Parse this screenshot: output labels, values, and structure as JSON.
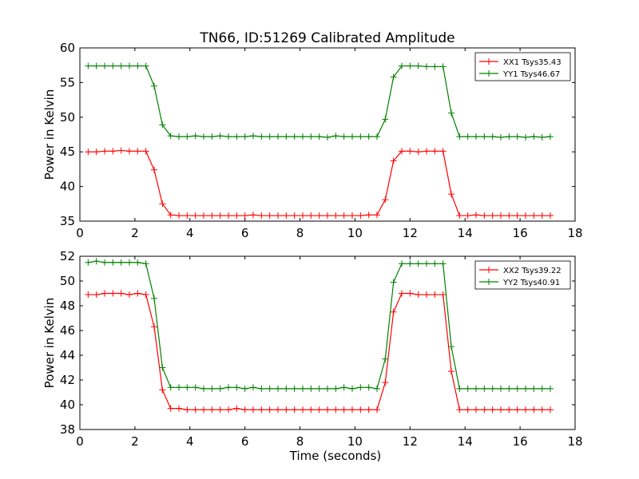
{
  "figure_title": "TN66, ID:51269 Calibrated Amplitude",
  "x_tick_labels": [
    "0",
    "2",
    "4",
    "6",
    "8",
    "10",
    "12",
    "14",
    "16",
    "18"
  ],
  "chart_data": [
    {
      "type": "line",
      "title": "TN66, ID:51269 Calibrated Amplitude",
      "xlabel": "",
      "ylabel": "Power in Kelvin",
      "xlim": [
        0,
        18
      ],
      "ylim": [
        35,
        60
      ],
      "yticks": [
        35,
        40,
        45,
        50,
        55,
        60
      ],
      "y_tick_labels": [
        "35",
        "40",
        "45",
        "50",
        "55",
        "60"
      ],
      "grid": false,
      "legend_position": "top-right",
      "x": [
        0.3,
        0.6,
        0.9,
        1.2,
        1.5,
        1.8,
        2.1,
        2.4,
        2.7,
        3.0,
        3.3,
        3.6,
        3.9,
        4.2,
        4.5,
        4.8,
        5.1,
        5.4,
        5.7,
        6.0,
        6.3,
        6.6,
        6.9,
        7.2,
        7.5,
        7.8,
        8.1,
        8.4,
        8.7,
        9.0,
        9.3,
        9.6,
        9.9,
        10.2,
        10.5,
        10.8,
        11.1,
        11.4,
        11.7,
        12.0,
        12.3,
        12.6,
        12.9,
        13.2,
        13.5,
        13.8,
        14.1,
        14.4,
        14.7,
        15.0,
        15.3,
        15.6,
        15.9,
        16.2,
        16.5,
        16.8,
        17.1
      ],
      "series": [
        {
          "name": "XX1 Tsys35.43",
          "color": "#ff0000",
          "values": [
            45.0,
            45.0,
            45.1,
            45.1,
            45.2,
            45.1,
            45.1,
            45.1,
            42.4,
            37.5,
            35.9,
            35.8,
            35.8,
            35.8,
            35.8,
            35.8,
            35.8,
            35.8,
            35.8,
            35.8,
            35.9,
            35.8,
            35.8,
            35.8,
            35.8,
            35.8,
            35.8,
            35.8,
            35.8,
            35.8,
            35.8,
            35.8,
            35.8,
            35.8,
            35.9,
            35.9,
            38.1,
            43.7,
            45.1,
            45.1,
            45.0,
            45.1,
            45.1,
            45.1,
            38.9,
            35.8,
            35.8,
            35.9,
            35.8,
            35.8,
            35.8,
            35.8,
            35.8,
            35.8,
            35.8,
            35.8,
            35.8
          ]
        },
        {
          "name": "YY1 Tsys46.67",
          "color": "#008000",
          "values": [
            57.4,
            57.4,
            57.4,
            57.4,
            57.4,
            57.4,
            57.4,
            57.4,
            54.5,
            48.9,
            47.3,
            47.2,
            47.2,
            47.3,
            47.2,
            47.2,
            47.3,
            47.2,
            47.2,
            47.2,
            47.3,
            47.2,
            47.2,
            47.2,
            47.2,
            47.2,
            47.2,
            47.2,
            47.2,
            47.1,
            47.3,
            47.2,
            47.2,
            47.2,
            47.2,
            47.2,
            49.7,
            55.8,
            57.4,
            57.4,
            57.4,
            57.3,
            57.3,
            57.3,
            50.6,
            47.2,
            47.2,
            47.2,
            47.2,
            47.2,
            47.1,
            47.2,
            47.2,
            47.1,
            47.2,
            47.1,
            47.2
          ]
        }
      ]
    },
    {
      "type": "line",
      "title": "",
      "xlabel": "Time (seconds)",
      "ylabel": "Power in Kelvin",
      "xlim": [
        0,
        18
      ],
      "ylim": [
        38,
        52
      ],
      "yticks": [
        38,
        40,
        42,
        44,
        46,
        48,
        50,
        52
      ],
      "y_tick_labels": [
        "38",
        "40",
        "42",
        "44",
        "46",
        "48",
        "50",
        "52"
      ],
      "grid": false,
      "legend_position": "top-right",
      "x": [
        0.3,
        0.6,
        0.9,
        1.2,
        1.5,
        1.8,
        2.1,
        2.4,
        2.7,
        3.0,
        3.3,
        3.6,
        3.9,
        4.2,
        4.5,
        4.8,
        5.1,
        5.4,
        5.7,
        6.0,
        6.3,
        6.6,
        6.9,
        7.2,
        7.5,
        7.8,
        8.1,
        8.4,
        8.7,
        9.0,
        9.3,
        9.6,
        9.9,
        10.2,
        10.5,
        10.8,
        11.1,
        11.4,
        11.7,
        12.0,
        12.3,
        12.6,
        12.9,
        13.2,
        13.5,
        13.8,
        14.1,
        14.4,
        14.7,
        15.0,
        15.3,
        15.6,
        15.9,
        16.2,
        16.5,
        16.8,
        17.1
      ],
      "series": [
        {
          "name": "XX2 Tsys39.22",
          "color": "#ff0000",
          "values": [
            48.9,
            48.9,
            49.0,
            49.0,
            49.0,
            48.9,
            49.0,
            48.9,
            46.3,
            41.2,
            39.7,
            39.7,
            39.6,
            39.6,
            39.6,
            39.6,
            39.6,
            39.6,
            39.7,
            39.6,
            39.6,
            39.6,
            39.6,
            39.6,
            39.6,
            39.6,
            39.6,
            39.6,
            39.6,
            39.6,
            39.6,
            39.6,
            39.6,
            39.6,
            39.6,
            39.6,
            41.8,
            47.5,
            49.0,
            49.0,
            48.9,
            48.9,
            48.9,
            48.9,
            42.7,
            39.6,
            39.6,
            39.6,
            39.6,
            39.6,
            39.6,
            39.6,
            39.6,
            39.6,
            39.6,
            39.6,
            39.6
          ]
        },
        {
          "name": "YY2 Tsys40.91",
          "color": "#008000",
          "values": [
            51.5,
            51.6,
            51.5,
            51.5,
            51.5,
            51.5,
            51.5,
            51.4,
            48.6,
            43.0,
            41.4,
            41.4,
            41.4,
            41.4,
            41.3,
            41.3,
            41.3,
            41.4,
            41.4,
            41.3,
            41.4,
            41.3,
            41.3,
            41.3,
            41.3,
            41.3,
            41.3,
            41.3,
            41.3,
            41.3,
            41.3,
            41.4,
            41.3,
            41.4,
            41.4,
            41.3,
            43.7,
            49.9,
            51.4,
            51.4,
            51.4,
            51.4,
            51.4,
            51.4,
            44.7,
            41.3,
            41.3,
            41.3,
            41.3,
            41.3,
            41.3,
            41.3,
            41.3,
            41.3,
            41.3,
            41.3,
            41.3
          ]
        }
      ]
    }
  ]
}
